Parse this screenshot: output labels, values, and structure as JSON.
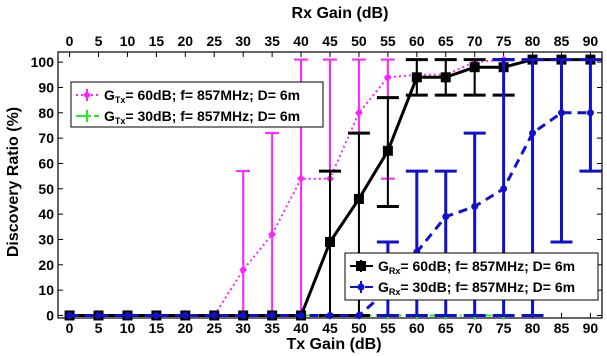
{
  "chart_data": {
    "type": "line",
    "title": "",
    "top_axis": {
      "label": "Rx Gain (dB)",
      "ticks": [
        0,
        5,
        10,
        15,
        20,
        25,
        30,
        35,
        40,
        45,
        50,
        55,
        60,
        65,
        70,
        75,
        80,
        85,
        90
      ],
      "xlim": [
        -2,
        92
      ]
    },
    "bottom_axis": {
      "label": "Tx Gain (dB)",
      "ticks": [
        0,
        5,
        10,
        15,
        20,
        25,
        30,
        35,
        40,
        45,
        50,
        55,
        60,
        65,
        70,
        75,
        80,
        85,
        90
      ],
      "xlim": [
        -2,
        92
      ]
    },
    "y_axis": {
      "label": "Discovery Ratio  (%)",
      "ticks": [
        0,
        10,
        20,
        30,
        40,
        50,
        60,
        70,
        80,
        90,
        100
      ],
      "ylim": [
        -1,
        104
      ]
    },
    "grid": false,
    "series": [
      {
        "name_parts": [
          "G",
          "Tx",
          "= 60dB; f= 857MHz; D= 6m"
        ],
        "axis": "bottom",
        "color": "#ff22ff",
        "line_style": "dotted",
        "marker": "diamond",
        "points": [
          {
            "x": 0,
            "y": 0,
            "lo": 0,
            "hi": 0
          },
          {
            "x": 5,
            "y": 0,
            "lo": 0,
            "hi": 0
          },
          {
            "x": 10,
            "y": 0,
            "lo": 0,
            "hi": 0
          },
          {
            "x": 15,
            "y": 0,
            "lo": 0,
            "hi": 0
          },
          {
            "x": 20,
            "y": 0,
            "lo": 0,
            "hi": 0
          },
          {
            "x": 25,
            "y": 0,
            "lo": 0,
            "hi": 0
          },
          {
            "x": 30,
            "y": 18,
            "lo": 0,
            "hi": 57
          },
          {
            "x": 35,
            "y": 32,
            "lo": 0,
            "hi": 72
          },
          {
            "x": 40,
            "y": 54,
            "lo": 0,
            "hi": 101
          },
          {
            "x": 45,
            "y": 54,
            "lo": 0,
            "hi": 101
          },
          {
            "x": 50,
            "y": 80,
            "lo": 0,
            "hi": 101
          },
          {
            "x": 55,
            "y": 94,
            "lo": 54,
            "hi": 101
          },
          {
            "x": 60,
            "y": 95,
            "lo": 87,
            "hi": 101
          },
          {
            "x": 65,
            "y": 95,
            "lo": 87,
            "hi": 101
          },
          {
            "x": 70,
            "y": 100,
            "lo": 87,
            "hi": 101
          },
          {
            "x": 75,
            "y": 101,
            "lo": 101,
            "hi": 101
          }
        ]
      },
      {
        "name_parts": [
          "G",
          "Tx",
          "= 30dB; f= 857MHz; D= 6m"
        ],
        "axis": "bottom",
        "color": "#22ee22",
        "line_style": "dashdot",
        "marker": "plus",
        "points": [
          {
            "x": 0,
            "y": 0,
            "lo": 0,
            "hi": 0
          },
          {
            "x": 5,
            "y": 0,
            "lo": 0,
            "hi": 0
          },
          {
            "x": 10,
            "y": 0,
            "lo": 0,
            "hi": 0
          },
          {
            "x": 15,
            "y": 0,
            "lo": 0,
            "hi": 0
          },
          {
            "x": 20,
            "y": 0,
            "lo": 0,
            "hi": 0
          },
          {
            "x": 25,
            "y": 0,
            "lo": 0,
            "hi": 0
          },
          {
            "x": 30,
            "y": 0,
            "lo": 0,
            "hi": 0
          },
          {
            "x": 35,
            "y": 0,
            "lo": 0,
            "hi": 0
          },
          {
            "x": 40,
            "y": 0,
            "lo": 0,
            "hi": 0
          },
          {
            "x": 45,
            "y": 0,
            "lo": 0,
            "hi": 0
          },
          {
            "x": 50,
            "y": 0,
            "lo": 0,
            "hi": 0
          },
          {
            "x": 55,
            "y": 0,
            "lo": 0,
            "hi": 0
          },
          {
            "x": 60,
            "y": 0,
            "lo": 0,
            "hi": 0
          },
          {
            "x": 65,
            "y": 0,
            "lo": 0,
            "hi": 0
          },
          {
            "x": 70,
            "y": 0,
            "lo": 0,
            "hi": 0
          },
          {
            "x": 75,
            "y": 0,
            "lo": 0,
            "hi": 0
          }
        ]
      },
      {
        "name_parts": [
          "G",
          "Rx",
          "= 60dB; f= 857MHz; D= 6m"
        ],
        "axis": "top",
        "color": "#000000",
        "line_style": "solid",
        "marker": "square",
        "points": [
          {
            "x": 0,
            "y": 0,
            "lo": 0,
            "hi": 0
          },
          {
            "x": 5,
            "y": 0,
            "lo": 0,
            "hi": 0
          },
          {
            "x": 10,
            "y": 0,
            "lo": 0,
            "hi": 0
          },
          {
            "x": 15,
            "y": 0,
            "lo": 0,
            "hi": 0
          },
          {
            "x": 20,
            "y": 0,
            "lo": 0,
            "hi": 0
          },
          {
            "x": 25,
            "y": 0,
            "lo": 0,
            "hi": 0
          },
          {
            "x": 30,
            "y": 0,
            "lo": 0,
            "hi": 0
          },
          {
            "x": 35,
            "y": 0,
            "lo": 0,
            "hi": 0
          },
          {
            "x": 40,
            "y": 0,
            "lo": 0,
            "hi": 0
          },
          {
            "x": 45,
            "y": 29,
            "lo": 0,
            "hi": 57
          },
          {
            "x": 50,
            "y": 46,
            "lo": 0,
            "hi": 72
          },
          {
            "x": 55,
            "y": 65,
            "lo": 43,
            "hi": 86
          },
          {
            "x": 60,
            "y": 94,
            "lo": 87,
            "hi": 101
          },
          {
            "x": 65,
            "y": 94,
            "lo": 87,
            "hi": 101
          },
          {
            "x": 70,
            "y": 98,
            "lo": 87,
            "hi": 101
          },
          {
            "x": 75,
            "y": 98,
            "lo": 87,
            "hi": 101
          },
          {
            "x": 80,
            "y": 101,
            "lo": 101,
            "hi": 101
          },
          {
            "x": 85,
            "y": 101,
            "lo": 101,
            "hi": 101
          },
          {
            "x": 90,
            "y": 101,
            "lo": 101,
            "hi": 101
          }
        ]
      },
      {
        "name_parts": [
          "G",
          "Rx",
          "= 30dB; f= 857MHz; D= 6m"
        ],
        "axis": "top",
        "color": "#1111cc",
        "line_style": "dashed",
        "marker": "circle",
        "points": [
          {
            "x": 0,
            "y": 0,
            "lo": 0,
            "hi": 0
          },
          {
            "x": 5,
            "y": 0,
            "lo": 0,
            "hi": 0
          },
          {
            "x": 10,
            "y": 0,
            "lo": 0,
            "hi": 0
          },
          {
            "x": 15,
            "y": 0,
            "lo": 0,
            "hi": 0
          },
          {
            "x": 20,
            "y": 0,
            "lo": 0,
            "hi": 0
          },
          {
            "x": 25,
            "y": 0,
            "lo": 0,
            "hi": 0
          },
          {
            "x": 30,
            "y": 0,
            "lo": 0,
            "hi": 0
          },
          {
            "x": 35,
            "y": 0,
            "lo": 0,
            "hi": 0
          },
          {
            "x": 40,
            "y": 0,
            "lo": 0,
            "hi": 0
          },
          {
            "x": 45,
            "y": 0,
            "lo": 0,
            "hi": 0
          },
          {
            "x": 50,
            "y": 0,
            "lo": 0,
            "hi": 0
          },
          {
            "x": 55,
            "y": 10,
            "lo": 0,
            "hi": 29
          },
          {
            "x": 60,
            "y": 25,
            "lo": 0,
            "hi": 57
          },
          {
            "x": 65,
            "y": 39,
            "lo": 0,
            "hi": 57
          },
          {
            "x": 70,
            "y": 43,
            "lo": 0,
            "hi": 72
          },
          {
            "x": 75,
            "y": 50,
            "lo": 0,
            "hi": 101
          },
          {
            "x": 80,
            "y": 72,
            "lo": 0,
            "hi": 101
          },
          {
            "x": 85,
            "y": 80,
            "lo": 29,
            "hi": 101
          },
          {
            "x": 90,
            "y": 80,
            "lo": 57,
            "hi": 101
          }
        ]
      }
    ],
    "legends": [
      {
        "position": "upper-left",
        "series": [
          0,
          1
        ]
      },
      {
        "position": "lower-right",
        "series": [
          2,
          3
        ]
      }
    ]
  }
}
